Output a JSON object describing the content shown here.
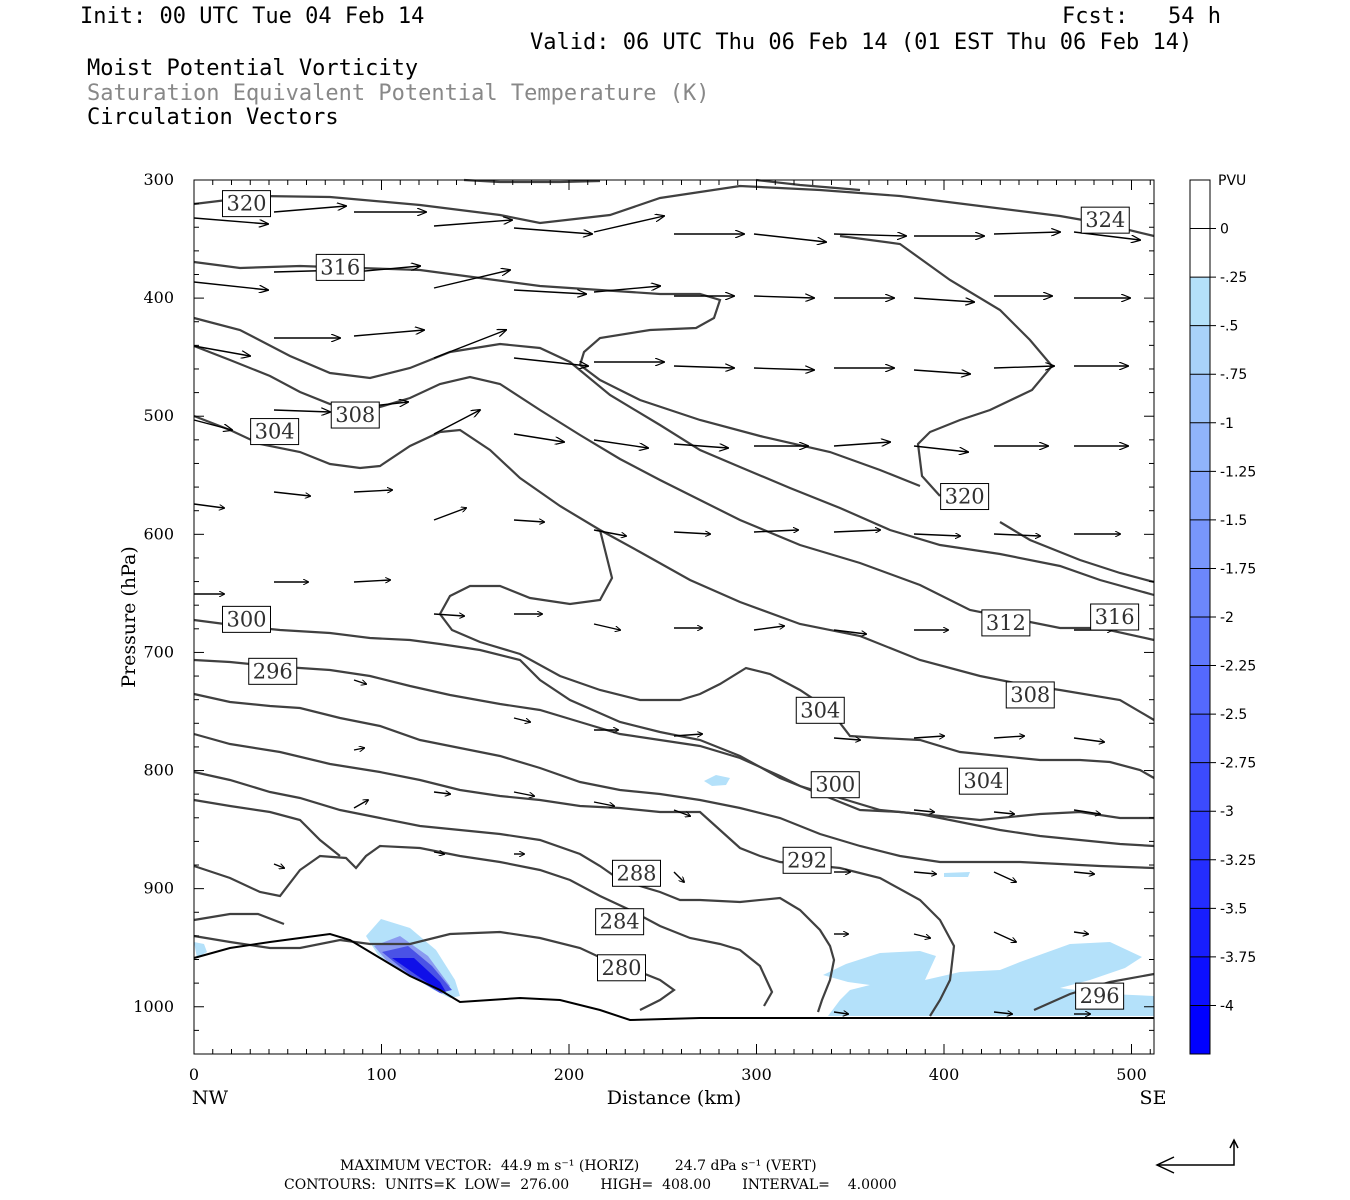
{
  "header": {
    "init": "Init: 00 UTC Tue 04 Feb 14",
    "fcst": "Fcst:   54 h",
    "valid": "Valid: 06 UTC Thu 06 Feb 14 (01 EST Thu 06 Feb 14)",
    "field1": "Moist Potential Vorticity",
    "field2": "Saturation Equivalent Potential Temperature (K)",
    "field3": "Circulation Vectors"
  },
  "footer": {
    "maxvec": "MAXIMUM VECTOR:  44.9 m s⁻¹ (HORIZ)        24.7 dPa s⁻¹ (VERT)",
    "contours": "CONTOURS:  UNITS=K  LOW=  276.00       HIGH=  408.00       INTERVAL=    4.0000"
  },
  "colors": {
    "contour": "#404040",
    "pv_light": "#b4e1fa",
    "pv_dark": "#0000ff"
  },
  "chart_data": {
    "type": "cross-section",
    "xlabel": "Distance (km)",
    "ylabel": "Pressure (hPa)",
    "xlim": [
      0,
      512
    ],
    "ylim": [
      1040,
      300
    ],
    "x_ticks": [
      "0",
      "100",
      "200",
      "300",
      "400",
      "500"
    ],
    "y_ticks": [
      "300",
      "400",
      "500",
      "600",
      "700",
      "800",
      "900",
      "1000"
    ],
    "x_end_labels": {
      "left": "NW",
      "right": "SE"
    },
    "colorbar": {
      "title": "PVU",
      "labels": [
        "0",
        "-.25",
        "-.5",
        "-.75",
        "-1",
        "-1.25",
        "-1.5",
        "-1.75",
        "-2",
        "-2.25",
        "-2.5",
        "-2.75",
        "-3",
        "-3.25",
        "-3.5",
        "-3.75",
        "-4"
      ]
    },
    "contour_labels": [
      {
        "text": "320",
        "x": 28,
        "p": 320
      },
      {
        "text": "324",
        "x": 486,
        "p": 334
      },
      {
        "text": "316",
        "x": 78,
        "p": 374
      },
      {
        "text": "308",
        "x": 86,
        "p": 499
      },
      {
        "text": "304",
        "x": 43,
        "p": 513
      },
      {
        "text": "320",
        "x": 411,
        "p": 568
      },
      {
        "text": "300",
        "x": 28,
        "p": 672
      },
      {
        "text": "316",
        "x": 491,
        "p": 670
      },
      {
        "text": "312",
        "x": 433,
        "p": 675
      },
      {
        "text": "296",
        "x": 42,
        "p": 716
      },
      {
        "text": "308",
        "x": 446,
        "p": 736
      },
      {
        "text": "304",
        "x": 334,
        "p": 749
      },
      {
        "text": "300",
        "x": 342,
        "p": 812
      },
      {
        "text": "304",
        "x": 421,
        "p": 809
      },
      {
        "text": "292",
        "x": 327,
        "p": 876
      },
      {
        "text": "288",
        "x": 236,
        "p": 887
      },
      {
        "text": "284",
        "x": 227,
        "p": 928
      },
      {
        "text": "280",
        "x": 228,
        "p": 967
      },
      {
        "text": "296",
        "x": 483,
        "p": 991
      }
    ]
  }
}
